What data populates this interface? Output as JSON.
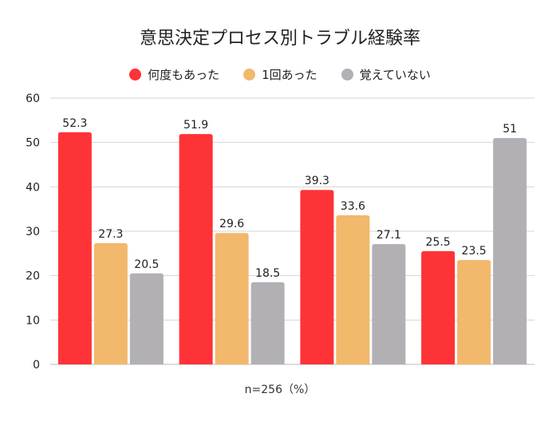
{
  "title": "意思決定プロセス別トラブル経験率",
  "footnote": "n=256（%）",
  "colors": {
    "series_0": "#fe3337",
    "series_1": "#f2b86c",
    "series_2": "#b2b0b5",
    "grid": "#d6d6d6",
    "axis_text": "#222222"
  },
  "chart_data": {
    "type": "bar",
    "title": "意思決定プロセス別トラブル経験率",
    "xlabel": "",
    "ylabel": "",
    "ylim": [
      0,
      60
    ],
    "yticks": [
      0,
      10,
      20,
      30,
      40,
      50,
      60
    ],
    "grid": true,
    "legend": "top-center",
    "categories": [
      "",
      "",
      "",
      ""
    ],
    "series": [
      {
        "name": "何度もあった",
        "values": [
          52.3,
          51.9,
          39.3,
          25.5
        ]
      },
      {
        "name": "1回あった",
        "values": [
          27.3,
          29.6,
          33.6,
          23.5
        ]
      },
      {
        "name": "覚えていない",
        "values": [
          20.5,
          18.5,
          27.1,
          51
        ]
      }
    ]
  }
}
